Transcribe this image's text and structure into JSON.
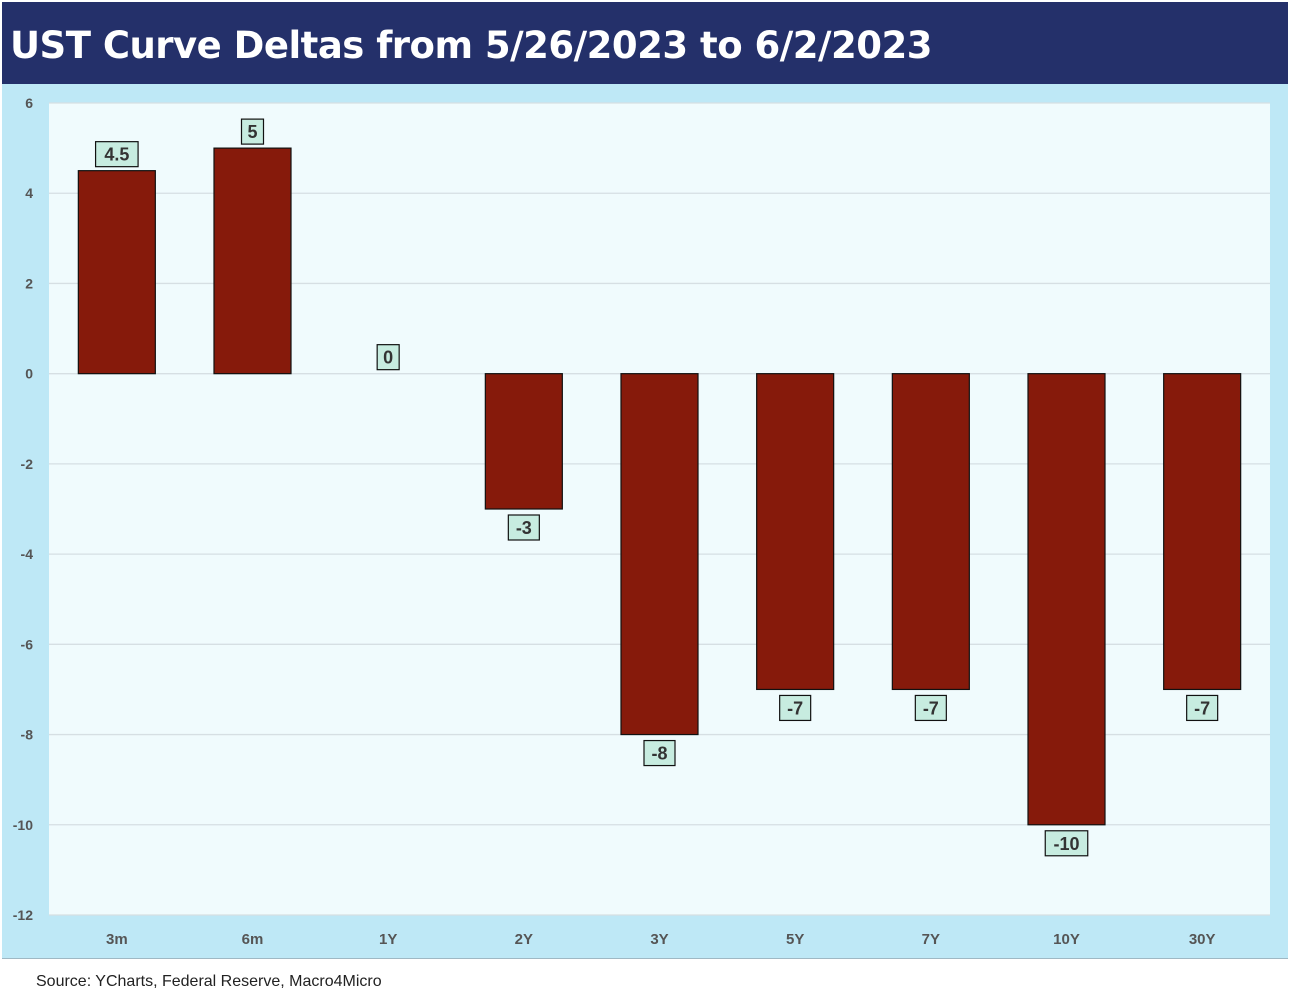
{
  "title": "UST Curve Deltas from 5/26/2023 to 6/2/2023",
  "source": "Source: YCharts, Federal Reserve, Macro4Micro",
  "colors": {
    "title_bg": "#24306a",
    "frame_bg": "#bee8f6",
    "plot_bg": "#f0fbfd",
    "bar": "#861a0b",
    "label_bg": "#c7ece0"
  },
  "chart_data": {
    "type": "bar",
    "title": "UST Curve Deltas from 5/26/2023 to 6/2/2023",
    "categories": [
      "3m",
      "6m",
      "1Y",
      "2Y",
      "3Y",
      "5Y",
      "7Y",
      "10Y",
      "30Y"
    ],
    "values": [
      4.5,
      5,
      0,
      -3,
      -8,
      -7,
      -7,
      -10,
      -7
    ],
    "data_labels": [
      "4.5",
      "5",
      "0",
      "-3",
      "-8",
      "-7",
      "-7",
      "-10",
      "-7"
    ],
    "y_ticks": [
      6,
      4,
      2,
      0,
      -2,
      -4,
      -6,
      -8,
      -10,
      -12
    ],
    "ylim": [
      -12,
      6
    ],
    "xlabel": "",
    "ylabel": "",
    "grid": true,
    "legend": "none"
  }
}
